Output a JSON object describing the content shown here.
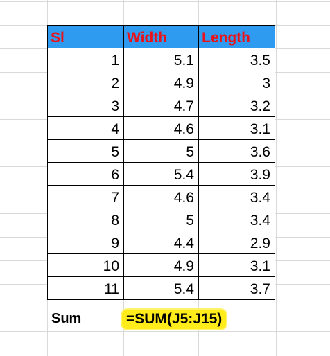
{
  "table": {
    "headers": [
      "Sl",
      "Width",
      "Length"
    ],
    "rows": [
      [
        "1",
        "5.1",
        "3.5"
      ],
      [
        "2",
        "4.9",
        "3"
      ],
      [
        "3",
        "4.7",
        "3.2"
      ],
      [
        "4",
        "4.6",
        "3.1"
      ],
      [
        "5",
        "5",
        "3.6"
      ],
      [
        "6",
        "5.4",
        "3.9"
      ],
      [
        "7",
        "4.6",
        "3.4"
      ],
      [
        "8",
        "5",
        "3.4"
      ],
      [
        "9",
        "4.4",
        "2.9"
      ],
      [
        "10",
        "4.9",
        "3.1"
      ],
      [
        "11",
        "5.4",
        "3.7"
      ]
    ]
  },
  "sum": {
    "label": "Sum",
    "formula": "=SUM(J5:J15)"
  },
  "colors": {
    "header_fill": "#2e9bf0",
    "header_text": "#e8141b",
    "highlight": "#ffec1a"
  }
}
